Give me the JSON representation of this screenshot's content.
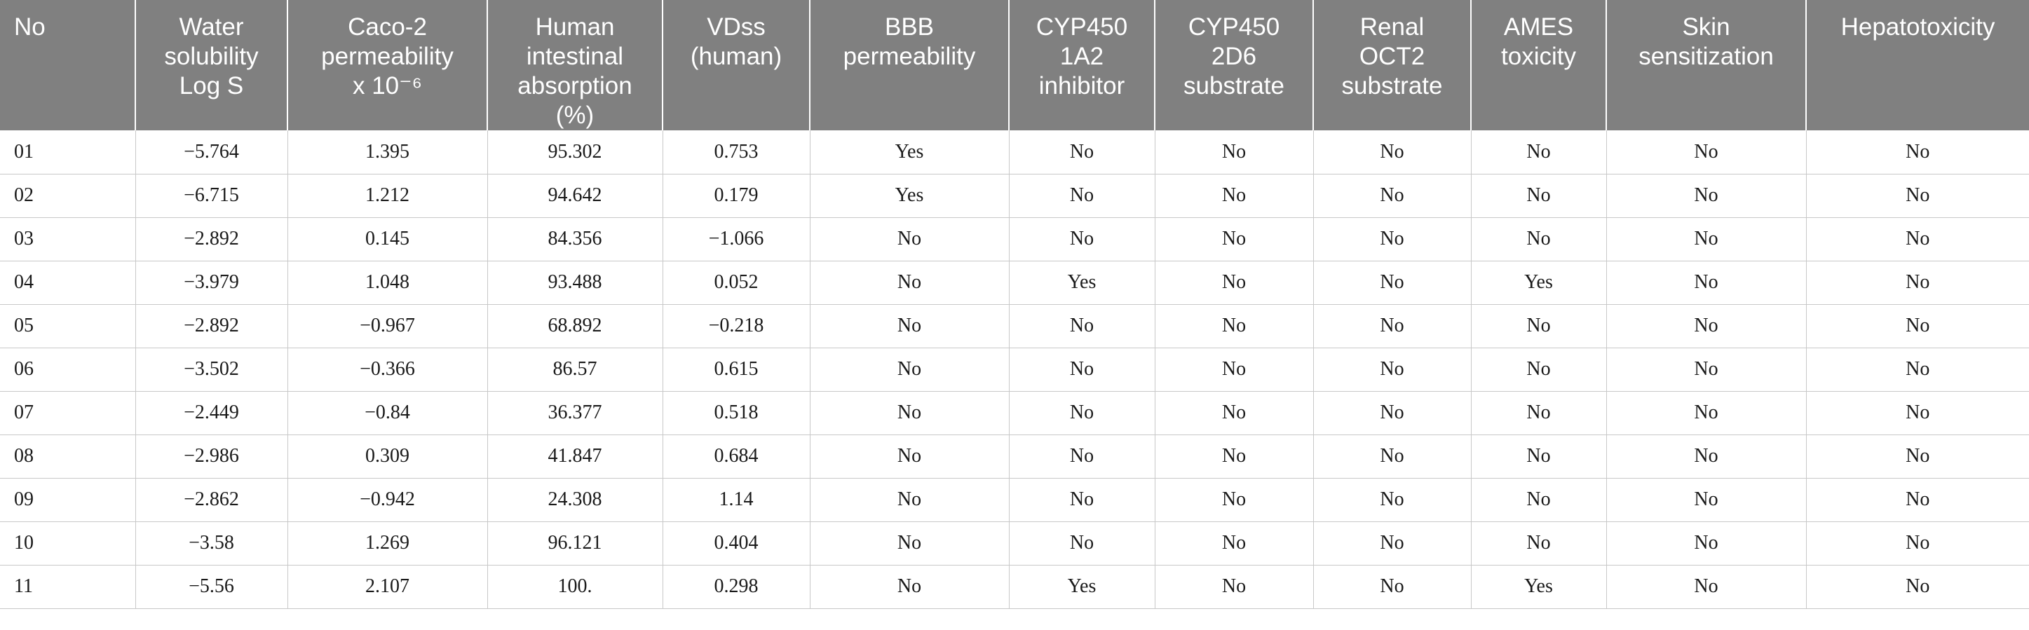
{
  "table": {
    "headers": [
      [
        "No"
      ],
      [
        "Water",
        "solubility",
        "Log S"
      ],
      [
        "Caco-2",
        "permeability",
        "x 10⁻⁶"
      ],
      [
        "Human",
        "intestinal",
        "absorption",
        "(%)"
      ],
      [
        "VDss",
        "(human)"
      ],
      [
        "BBB",
        "permeability"
      ],
      [
        "CYP450",
        "1A2",
        "inhibitor"
      ],
      [
        "CYP450",
        "2D6",
        "substrate"
      ],
      [
        "Renal",
        "OCT2",
        "substrate"
      ],
      [
        "AMES",
        "toxicity"
      ],
      [
        "Skin",
        "sensitization"
      ],
      [
        "Hepatotoxicity"
      ]
    ],
    "rows": [
      [
        "01",
        "−5.764",
        "1.395",
        "95.302",
        "0.753",
        "Yes",
        "No",
        "No",
        "No",
        "No",
        "No",
        "No"
      ],
      [
        "02",
        "−6.715",
        "1.212",
        "94.642",
        "0.179",
        "Yes",
        "No",
        "No",
        "No",
        "No",
        "No",
        "No"
      ],
      [
        "03",
        "−2.892",
        "0.145",
        "84.356",
        "−1.066",
        "No",
        "No",
        "No",
        "No",
        "No",
        "No",
        "No"
      ],
      [
        "04",
        "−3.979",
        "1.048",
        "93.488",
        "0.052",
        "No",
        "Yes",
        "No",
        "No",
        "Yes",
        "No",
        "No"
      ],
      [
        "05",
        "−2.892",
        "−0.967",
        "68.892",
        "−0.218",
        "No",
        "No",
        "No",
        "No",
        "No",
        "No",
        "No"
      ],
      [
        "06",
        "−3.502",
        "−0.366",
        "86.57",
        "0.615",
        "No",
        "No",
        "No",
        "No",
        "No",
        "No",
        "No"
      ],
      [
        "07",
        "−2.449",
        "−0.84",
        "36.377",
        "0.518",
        "No",
        "No",
        "No",
        "No",
        "No",
        "No",
        "No"
      ],
      [
        "08",
        "−2.986",
        "0.309",
        "41.847",
        "0.684",
        "No",
        "No",
        "No",
        "No",
        "No",
        "No",
        "No"
      ],
      [
        "09",
        "−2.862",
        "−0.942",
        "24.308",
        "1.14",
        "No",
        "No",
        "No",
        "No",
        "No",
        "No",
        "No"
      ],
      [
        "10",
        "−3.58",
        "1.269",
        "96.121",
        "0.404",
        "No",
        "No",
        "No",
        "No",
        "No",
        "No",
        "No"
      ],
      [
        "11",
        "−5.56",
        "2.107",
        "100.",
        "0.298",
        "No",
        "Yes",
        "No",
        "No",
        "Yes",
        "No",
        "No"
      ]
    ]
  },
  "colors": {
    "header_bg": "#808080",
    "header_text": "#ffffff",
    "grid_line": "#c8c8c8"
  }
}
